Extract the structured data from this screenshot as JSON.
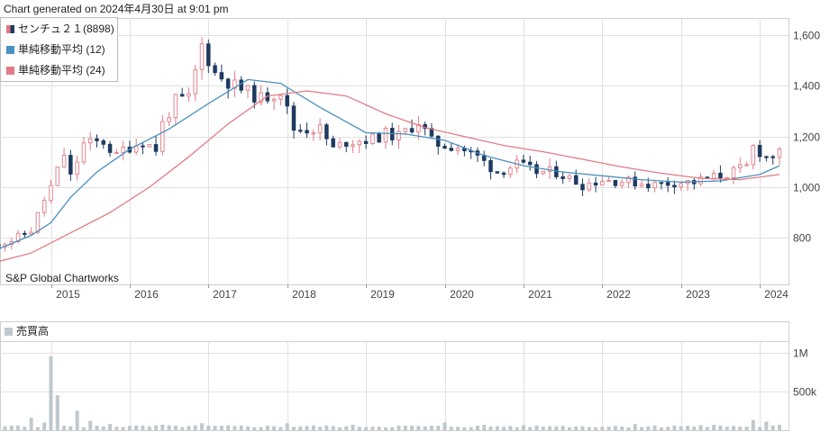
{
  "header": {
    "generated_text": "Chart generated on 2024年4月30日 at 9:01 pm"
  },
  "credit": "S&P Global Chartworks",
  "legend": [
    {
      "label": "センチュ２１(8898)",
      "color": "#e27a86",
      "color2": "#1f3a60"
    },
    {
      "label": "単純移動平均 (12)",
      "color": "#4a90c0"
    },
    {
      "label": "単純移動平均 (24)",
      "color": "#e27a86"
    }
  ],
  "volume_legend": "売買高",
  "colors": {
    "up": "#e27a86",
    "down": "#1f3a60",
    "sma12": "#4a90c0",
    "sma24": "#e27a86",
    "volume": "#bfc8cd",
    "grid": "#e1e1e1"
  },
  "chart_data": [
    {
      "type": "candlestick",
      "title": "",
      "x_axis": {
        "ticks": [
          "2015",
          "2016",
          "2017",
          "2018",
          "2019",
          "2020",
          "2021",
          "2022",
          "2023",
          "2024"
        ]
      },
      "y_axis": {
        "ticks": [
          "800",
          "1,000",
          "1,200",
          "1,400",
          "1,600"
        ],
        "range": [
          620,
          1680
        ]
      },
      "series": [
        {
          "name": "センチュ２１(8898)",
          "kind": "candles",
          "close_trend": [
            [
              "2014-04",
              770
            ],
            [
              "2014-07",
              790
            ],
            [
              "2014-10",
              830
            ],
            [
              "2014-12",
              950
            ],
            [
              "2015-01",
              1000
            ],
            [
              "2015-03",
              1130
            ],
            [
              "2015-04",
              1040
            ],
            [
              "2015-06",
              1170
            ],
            [
              "2015-09",
              1180
            ],
            [
              "2015-11",
              1120
            ],
            [
              "2015-12",
              1150
            ],
            [
              "2016-03",
              1180
            ],
            [
              "2016-05",
              1150
            ],
            [
              "2016-06",
              1250
            ],
            [
              "2016-08",
              1340
            ],
            [
              "2016-10",
              1350
            ],
            [
              "2016-12",
              1560
            ],
            [
              "2017-02",
              1450
            ],
            [
              "2017-05",
              1400
            ],
            [
              "2017-09",
              1350
            ],
            [
              "2017-12",
              1380
            ],
            [
              "2018-02",
              1230
            ],
            [
              "2018-06",
              1230
            ],
            [
              "2018-08",
              1150
            ],
            [
              "2018-10",
              1180
            ],
            [
              "2019-02",
              1190
            ],
            [
              "2019-04",
              1210
            ],
            [
              "2019-06",
              1200
            ],
            [
              "2019-09",
              1260
            ],
            [
              "2019-11",
              1180
            ],
            [
              "2019-12",
              1170
            ],
            [
              "2020-03",
              1160
            ],
            [
              "2020-06",
              1120
            ],
            [
              "2020-09",
              1060
            ],
            [
              "2020-12",
              1090
            ],
            [
              "2021-03",
              1060
            ],
            [
              "2021-06",
              1060
            ],
            [
              "2021-10",
              1010
            ],
            [
              "2022-01",
              1030
            ],
            [
              "2022-06",
              1020
            ],
            [
              "2022-09",
              1010
            ],
            [
              "2022-12",
              1020
            ],
            [
              "2023-03",
              1020
            ],
            [
              "2023-06",
              1040
            ],
            [
              "2023-09",
              1060
            ],
            [
              "2023-11",
              1080
            ],
            [
              "2023-12",
              1160
            ],
            [
              "2024-02",
              1120
            ],
            [
              "2024-04",
              1130
            ]
          ]
        },
        {
          "name": "単純移動平均 (12)",
          "kind": "line",
          "points": [
            [
              "2014-04",
              745
            ],
            [
              "2014-10",
              810
            ],
            [
              "2015-01",
              860
            ],
            [
              "2015-04",
              960
            ],
            [
              "2015-08",
              1060
            ],
            [
              "2016-01",
              1150
            ],
            [
              "2016-07",
              1230
            ],
            [
              "2017-01",
              1330
            ],
            [
              "2017-07",
              1425
            ],
            [
              "2017-12",
              1410
            ],
            [
              "2018-06",
              1315
            ],
            [
              "2019-01",
              1215
            ],
            [
              "2019-07",
              1210
            ],
            [
              "2020-01",
              1185
            ],
            [
              "2020-07",
              1125
            ],
            [
              "2021-01",
              1085
            ],
            [
              "2021-07",
              1060
            ],
            [
              "2022-01",
              1045
            ],
            [
              "2022-07",
              1030
            ],
            [
              "2023-01",
              1020
            ],
            [
              "2023-07",
              1025
            ],
            [
              "2024-01",
              1050
            ],
            [
              "2024-04",
              1085
            ]
          ]
        },
        {
          "name": "単純移動平均 (24)",
          "kind": "line",
          "points": [
            [
              "2014-04",
              700
            ],
            [
              "2014-10",
              740
            ],
            [
              "2015-04",
              820
            ],
            [
              "2015-10",
              900
            ],
            [
              "2016-04",
              1000
            ],
            [
              "2016-10",
              1120
            ],
            [
              "2017-04",
              1250
            ],
            [
              "2017-10",
              1360
            ],
            [
              "2018-04",
              1380
            ],
            [
              "2018-10",
              1360
            ],
            [
              "2019-04",
              1290
            ],
            [
              "2019-10",
              1235
            ],
            [
              "2020-04",
              1200
            ],
            [
              "2020-10",
              1165
            ],
            [
              "2021-04",
              1140
            ],
            [
              "2021-10",
              1110
            ],
            [
              "2022-04",
              1080
            ],
            [
              "2022-10",
              1055
            ],
            [
              "2023-04",
              1035
            ],
            [
              "2023-10",
              1030
            ],
            [
              "2024-04",
              1050
            ]
          ]
        }
      ]
    },
    {
      "type": "bar",
      "title": "売買高",
      "y_axis": {
        "ticks": [
          "500k",
          "1M"
        ],
        "range": [
          0,
          1100000
        ]
      },
      "peaks": [
        [
          "2014-04",
          40000
        ],
        [
          "2014-08",
          60000
        ],
        [
          "2014-10",
          160000
        ],
        [
          "2014-12",
          100000
        ],
        [
          "2015-01",
          950000
        ],
        [
          "2015-02",
          450000
        ],
        [
          "2015-05",
          250000
        ],
        [
          "2015-07",
          120000
        ],
        [
          "2015-10",
          80000
        ],
        [
          "2016-06",
          70000
        ],
        [
          "2016-12",
          90000
        ],
        [
          "2017-06",
          60000
        ],
        [
          "2018-01",
          90000
        ],
        [
          "2018-11",
          70000
        ],
        [
          "2019-06",
          60000
        ],
        [
          "2020-01",
          100000
        ],
        [
          "2020-07",
          70000
        ],
        [
          "2021-06",
          50000
        ],
        [
          "2022-06",
          80000
        ],
        [
          "2022-12",
          60000
        ],
        [
          "2023-06",
          70000
        ],
        [
          "2023-12",
          130000
        ],
        [
          "2024-02",
          110000
        ],
        [
          "2024-04",
          70000
        ]
      ]
    }
  ]
}
